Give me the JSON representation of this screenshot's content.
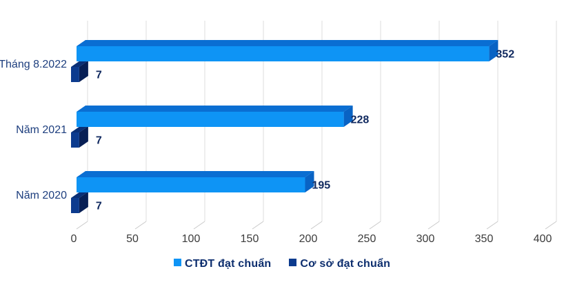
{
  "chart_data": {
    "type": "bar",
    "orientation": "horizontal",
    "effect_3d": true,
    "title": "",
    "xlabel": "",
    "ylabel": "",
    "categories": [
      "Tháng 8.2022",
      "Năm 2021",
      "Năm 2020"
    ],
    "series": [
      {
        "name": "CTĐT đạt chuẩn",
        "values": [
          352,
          228,
          195
        ],
        "color": "#0E94F5",
        "color_top": "#0A6ED2",
        "color_side": "#0963C4"
      },
      {
        "name": "Cơ sở đạt chuẩn",
        "values": [
          7,
          7,
          7
        ],
        "color": "#0C3B8E",
        "color_top": "#0A2F75",
        "color_side": "#071F55"
      }
    ],
    "x_ticks": [
      0,
      50,
      100,
      150,
      200,
      250,
      300,
      350,
      400
    ],
    "xlim": [
      0,
      400
    ],
    "grid": true,
    "value_labels": true,
    "legend_position": "bottom"
  },
  "colors": {
    "background": "#ffffff",
    "gridline": "#dcdcdc",
    "tick_slash": "#c8c8c8",
    "tick_text": "#3b3b3b",
    "category_text": "#1d3e7e",
    "value_text": "#112a60",
    "legend_text": "#0d2e6e"
  }
}
